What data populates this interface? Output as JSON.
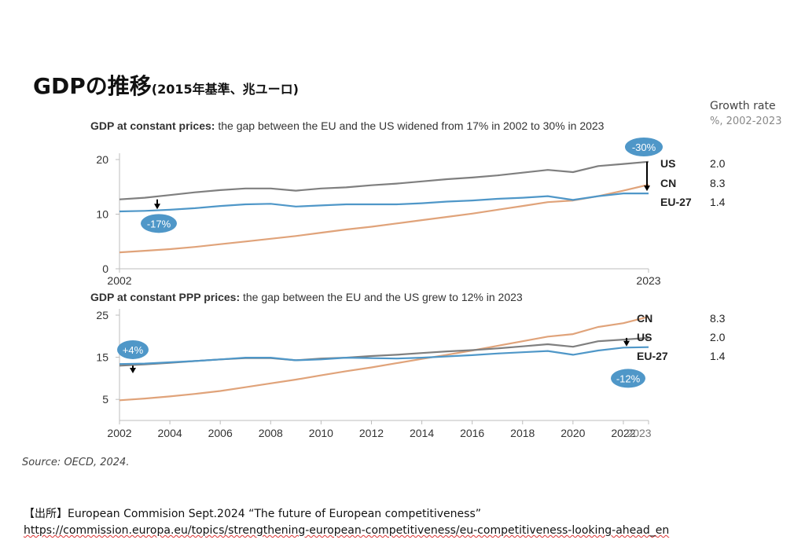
{
  "page": {
    "title": "GDPの推移",
    "subtitle": "(2015年基準、兆ユーロ)",
    "growth_header": "Growth rate",
    "growth_subheader": "%, 2002-2023",
    "source": "Source: OECD, 2024.",
    "reference_label": "【出所】European Commision Sept.2024 “The future of European competitiveness”",
    "reference_url": "https://commission.europa.eu/topics/strengthening-european-competitiveness/eu-competitiveness-looking-ahead_en"
  },
  "chart_data": [
    {
      "type": "line",
      "title_bold": "GDP at constant prices:",
      "title_rest": " the gap between the EU and the US widened from 17% in 2002 to 30% in 2023",
      "x": [
        2002,
        2003,
        2004,
        2005,
        2006,
        2007,
        2008,
        2009,
        2010,
        2011,
        2012,
        2013,
        2014,
        2015,
        2016,
        2017,
        2018,
        2019,
        2020,
        2021,
        2022,
        2023
      ],
      "x_tick_labels": [
        "2002",
        "2023"
      ],
      "ylim": [
        0,
        20
      ],
      "yticks": [
        0,
        10,
        20
      ],
      "grid": false,
      "series": [
        {
          "name": "US",
          "growth_rate": "2.0",
          "color": "#7f7f7f",
          "values": [
            12.7,
            13.0,
            13.5,
            14.0,
            14.4,
            14.7,
            14.7,
            14.3,
            14.7,
            14.9,
            15.3,
            15.6,
            16.0,
            16.4,
            16.7,
            17.1,
            17.6,
            18.1,
            17.7,
            18.8,
            19.2,
            19.6
          ]
        },
        {
          "name": "CN",
          "growth_rate": "8.3",
          "color": "#e0a37a",
          "values": [
            3.0,
            3.3,
            3.6,
            4.0,
            4.5,
            5.0,
            5.5,
            6.0,
            6.6,
            7.2,
            7.7,
            8.3,
            8.9,
            9.5,
            10.1,
            10.8,
            11.5,
            12.2,
            12.5,
            13.3,
            14.3,
            15.4
          ]
        },
        {
          "name": "EU-27",
          "growth_rate": "1.4",
          "color": "#4f97c8",
          "values": [
            10.5,
            10.6,
            10.8,
            11.1,
            11.5,
            11.8,
            11.9,
            11.4,
            11.6,
            11.8,
            11.8,
            11.8,
            12.0,
            12.3,
            12.5,
            12.8,
            13.0,
            13.3,
            12.6,
            13.3,
            13.8,
            13.8
          ]
        }
      ],
      "annotations": [
        "-17%",
        "-30%"
      ]
    },
    {
      "type": "line",
      "title_bold": "GDP at constant PPP prices:",
      "title_rest": " the gap between the EU and the US grew to 12% in 2023",
      "x": [
        2002,
        2003,
        2004,
        2005,
        2006,
        2007,
        2008,
        2009,
        2010,
        2011,
        2012,
        2013,
        2014,
        2015,
        2016,
        2017,
        2018,
        2019,
        2020,
        2021,
        2022,
        2023
      ],
      "x_tick_labels": [
        "2002",
        "2004",
        "2006",
        "2008",
        "2010",
        "2012",
        "2014",
        "2016",
        "2018",
        "2020",
        "2022",
        "2023"
      ],
      "ylim": [
        0,
        25
      ],
      "yticks": [
        5,
        15,
        25
      ],
      "grid": false,
      "series": [
        {
          "name": "CN",
          "growth_rate": "8.3",
          "color": "#e0a37a",
          "values": [
            4.8,
            5.2,
            5.7,
            6.3,
            7.0,
            7.9,
            8.8,
            9.7,
            10.7,
            11.7,
            12.6,
            13.6,
            14.6,
            15.6,
            16.6,
            17.7,
            18.8,
            19.9,
            20.5,
            22.2,
            23.1,
            24.6
          ]
        },
        {
          "name": "US",
          "growth_rate": "2.0",
          "color": "#7f7f7f",
          "values": [
            13.0,
            13.3,
            13.7,
            14.1,
            14.5,
            14.8,
            14.8,
            14.3,
            14.7,
            14.9,
            15.3,
            15.6,
            16.0,
            16.4,
            16.7,
            17.1,
            17.6,
            18.1,
            17.5,
            18.8,
            19.2,
            19.6
          ]
        },
        {
          "name": "EU-27",
          "growth_rate": "1.4",
          "color": "#4f97c8",
          "values": [
            13.4,
            13.5,
            13.8,
            14.1,
            14.5,
            14.9,
            14.9,
            14.3,
            14.5,
            14.9,
            14.8,
            14.7,
            14.9,
            15.2,
            15.5,
            15.9,
            16.2,
            16.5,
            15.6,
            16.6,
            17.3,
            17.4
          ]
        }
      ],
      "annotations": [
        "+4%",
        "-12%"
      ]
    }
  ]
}
